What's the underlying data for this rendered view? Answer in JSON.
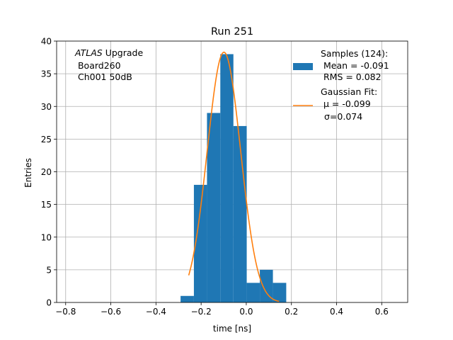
{
  "chart_data": {
    "type": "bar",
    "title": "Run 251",
    "xlabel": "time [ns]",
    "ylabel": "Entries",
    "xlim": [
      -0.84,
      0.715
    ],
    "ylim": [
      0,
      40
    ],
    "grid": true,
    "x_ticks": [
      -0.8,
      -0.6,
      -0.4,
      -0.2,
      0.0,
      0.2,
      0.4,
      0.6
    ],
    "x_tick_labels": [
      "−0.8",
      "−0.6",
      "−0.4",
      "−0.2",
      "0.0",
      "0.2",
      "0.4",
      "0.6"
    ],
    "y_ticks": [
      0,
      5,
      10,
      15,
      20,
      25,
      30,
      35,
      40
    ],
    "y_tick_labels": [
      "0",
      "5",
      "10",
      "15",
      "20",
      "25",
      "30",
      "35",
      "40"
    ],
    "bin_edges": [
      -0.291,
      -0.232,
      -0.174,
      -0.115,
      -0.057,
      0.002,
      0.06,
      0.118,
      0.177
    ],
    "bin_counts": [
      1,
      18,
      29,
      38,
      27,
      3,
      5,
      3
    ],
    "fit": {
      "type": "gaussian",
      "amplitude": 38.3,
      "mu": -0.099,
      "sigma": 0.074,
      "x_range": [
        -0.255,
        0.145
      ]
    },
    "annotation": {
      "italic": "ATLAS",
      "rest": " Upgrade",
      "line2": " Board260",
      "line3": " Ch001 50dB"
    },
    "legend": {
      "position": "top-right",
      "hist_line1": "Samples (124):",
      "hist_line2": " Mean = -0.091",
      "hist_line3": " RMS = 0.082",
      "fit_line1": "Gaussian Fit:",
      "fit_line2": " μ = -0.099",
      "fit_line3": "σ=0.074"
    },
    "colors": {
      "hist": "#1f77b4",
      "fit": "#ff7f0e",
      "grid": "#b0b0b0"
    }
  }
}
